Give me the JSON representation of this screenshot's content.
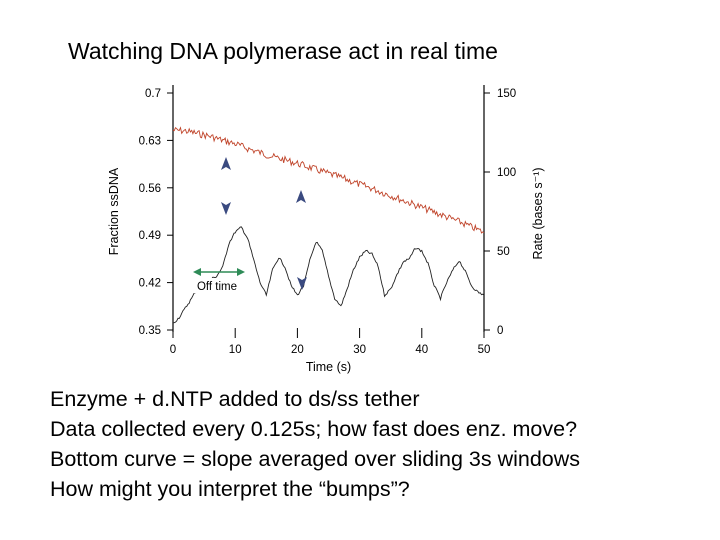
{
  "slide": {
    "title": "Watching DNA polymerase act in real time",
    "notes": [
      "Enzyme + d.NTP added to ds/ss tether",
      "Data collected every 0.125s; how fast does enz. move?",
      "Bottom curve = slope averaged over sliding 3s windows",
      " How might you interpret the “bumps”?"
    ]
  },
  "chart_data": {
    "type": "line",
    "xlabel": "Time (s)",
    "ylabel": "Fraction ssDNA",
    "y2label": "Rate (bases s⁻¹)",
    "xlim": [
      0,
      50
    ],
    "ylim": [
      0.35,
      0.7
    ],
    "y2lim": [
      0,
      150
    ],
    "xticks": [
      "0",
      "10",
      "20",
      "30",
      "40",
      "50"
    ],
    "yticks": [
      "0.35",
      "0.42",
      "0.49",
      "0.56",
      "0.63",
      "0.7"
    ],
    "y2ticks": [
      "0",
      "50",
      "100",
      "150"
    ],
    "annotation": "Off time",
    "colors": {
      "fraction": "#c0442a",
      "rate": "#222222",
      "arrow": "#3a4a80",
      "annotation": "#2e8b57"
    },
    "series": [
      {
        "axis": "left",
        "x": [
          0,
          2,
          4,
          6,
          8,
          10,
          12,
          14,
          16,
          18,
          20,
          22,
          24,
          26,
          28,
          30,
          32,
          34,
          36,
          38,
          40,
          42,
          44,
          46,
          48,
          50
        ],
        "values": [
          0.645,
          0.644,
          0.64,
          0.636,
          0.63,
          0.625,
          0.618,
          0.612,
          0.606,
          0.601,
          0.596,
          0.59,
          0.584,
          0.578,
          0.572,
          0.565,
          0.559,
          0.552,
          0.545,
          0.538,
          0.531,
          0.524,
          0.517,
          0.51,
          0.502,
          0.494
        ]
      },
      {
        "axis": "right",
        "x": [
          0,
          1,
          2,
          3,
          4,
          5,
          6,
          7,
          8,
          9,
          10,
          11,
          12,
          13,
          14,
          15,
          16,
          17,
          18,
          19,
          20,
          21,
          22,
          23,
          24,
          25,
          26,
          27,
          28,
          29,
          30,
          31,
          32,
          33,
          34,
          35,
          36,
          37,
          38,
          39,
          40,
          41,
          42,
          43,
          44,
          45,
          46,
          47,
          48,
          49,
          50
        ],
        "values": [
          4,
          8,
          14,
          20,
          27,
          30,
          32,
          34,
          40,
          55,
          62,
          65,
          58,
          44,
          30,
          22,
          38,
          46,
          40,
          28,
          22,
          28,
          44,
          56,
          50,
          34,
          20,
          15,
          26,
          38,
          46,
          50,
          48,
          40,
          22,
          26,
          35,
          43,
          45,
          52,
          50,
          42,
          28,
          20,
          30,
          38,
          44,
          37,
          28,
          24,
          22
        ]
      }
    ]
  }
}
